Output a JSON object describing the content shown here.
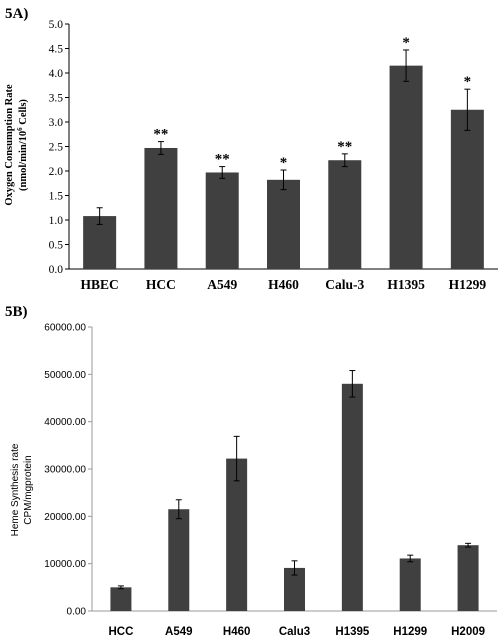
{
  "chart_data": [
    {
      "panel_label": "5A)",
      "type": "bar",
      "categories": [
        "HBEC",
        "HCC",
        "A549",
        "H460",
        "Calu-3",
        "H1395",
        "H1299"
      ],
      "values": [
        1.08,
        2.47,
        1.97,
        1.82,
        2.22,
        4.15,
        3.25
      ],
      "errors": [
        0.17,
        0.13,
        0.12,
        0.2,
        0.13,
        0.32,
        0.42
      ],
      "annotations": [
        "",
        "**",
        "**",
        "*",
        "**",
        "*",
        "*"
      ],
      "ylabel_line1": "Oxygen Consumption Rate",
      "ylabel_line2": "(nmol/min/10",
      "ylabel_sup": "6",
      "ylabel_line2_tail": " Cells)",
      "ylim": [
        0,
        5.0
      ],
      "yticks": [
        "0.0",
        "0.5",
        "1.0",
        "1.5",
        "2.0",
        "2.5",
        "3.0",
        "3.5",
        "4.0",
        "4.5",
        "5.0"
      ],
      "grid": false,
      "bar_color": "#404040"
    },
    {
      "panel_label": "5B)",
      "type": "bar",
      "categories": [
        "HCC",
        "A549",
        "H460",
        "Calu3",
        "H1395",
        "H1299",
        "H2009"
      ],
      "values": [
        5000,
        21500,
        32200,
        9100,
        48000,
        11100,
        13900
      ],
      "errors": [
        300,
        2000,
        4700,
        1500,
        2800,
        700,
        400
      ],
      "ylabel_line1": "Heme Synthesis rate",
      "ylabel_line2": "CPM/mgprotein",
      "ylim": [
        0,
        60000
      ],
      "yticks": [
        "0.00",
        "10000.00",
        "20000.00",
        "30000.00",
        "40000.00",
        "50000.00",
        "60000.00"
      ],
      "grid": false,
      "bar_color": "#404040"
    }
  ]
}
